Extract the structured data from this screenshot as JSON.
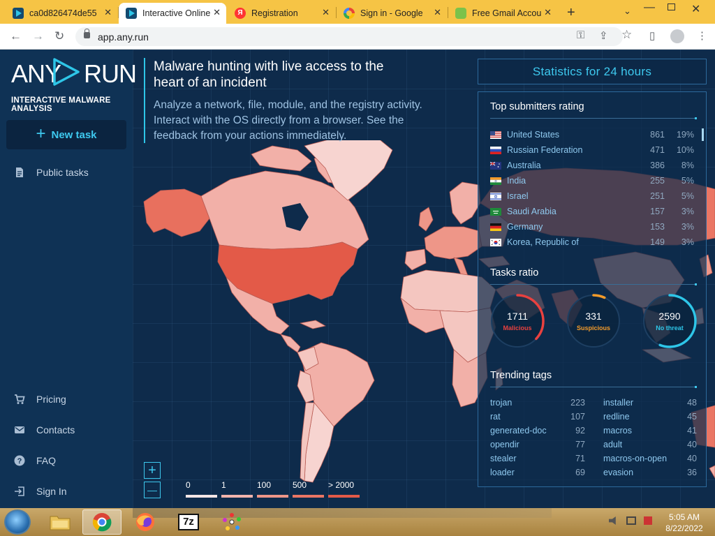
{
  "browser": {
    "tabs": [
      {
        "title": "ca0d826474de55",
        "favicon": "anyrun-icon",
        "active": false
      },
      {
        "title": "Interactive Online",
        "favicon": "anyrun-icon",
        "active": true
      },
      {
        "title": "Registration",
        "favicon": "yandex-icon",
        "active": false
      },
      {
        "title": "Sign in - Google",
        "favicon": "google-icon",
        "active": false
      },
      {
        "title": "Free Gmail Accou",
        "favicon": "gmail-icon",
        "active": false
      }
    ],
    "close_glyph": "✕",
    "new_tab_glyph": "+",
    "tab_search_glyph": "⌄",
    "minimize_glyph": "—",
    "close_window_glyph": "✕",
    "url": "app.any.run",
    "back_glyph": "←",
    "forward_glyph": "→",
    "reload_glyph": "↻",
    "key_glyph": "⚿",
    "share_glyph": "⇪",
    "star_glyph": "☆",
    "sidepanel_glyph": "▯",
    "menu_glyph": "⋮"
  },
  "sidebar": {
    "logo_left": "ANY",
    "logo_right": "RUN",
    "logo_subtitle": "INTERACTIVE MALWARE ANALYSIS",
    "new_task_plus": "+",
    "new_task_label": "New task",
    "public_tasks": "Public tasks",
    "pricing": "Pricing",
    "contacts": "Contacts",
    "faq": "FAQ",
    "sign_in": "Sign In"
  },
  "hero": {
    "title": "Malware hunting with live access to the heart of an incident",
    "description": "Analyze a network, file, module, and the registry activity. Interact with the OS directly from a browser. See the feedback from your actions immediately."
  },
  "map": {
    "zoom_in": "+",
    "zoom_out": "—",
    "legend": [
      {
        "label": "0",
        "color": "#f4e6e6"
      },
      {
        "label": "1",
        "color": "#f2b4ac"
      },
      {
        "label": "100",
        "color": "#ee9688"
      },
      {
        "label": "500",
        "color": "#ea7664"
      },
      {
        "label": "> 2000",
        "color": "#e35a48"
      }
    ]
  },
  "stats": {
    "title": "Statistics for 24 hours",
    "submitters_title": "Top submitters rating",
    "submitters": [
      {
        "country": "United States",
        "count": "861",
        "pct": "19%",
        "flag": "us-flag-icon"
      },
      {
        "country": "Russian Federation",
        "count": "471",
        "pct": "10%",
        "flag": "ru-flag-icon"
      },
      {
        "country": "Australia",
        "count": "386",
        "pct": "8%",
        "flag": "au-flag-icon"
      },
      {
        "country": "India",
        "count": "255",
        "pct": "5%",
        "flag": "in-flag-icon"
      },
      {
        "country": "Israel",
        "count": "251",
        "pct": "5%",
        "flag": "il-flag-icon"
      },
      {
        "country": "Saudi Arabia",
        "count": "157",
        "pct": "3%",
        "flag": "sa-flag-icon"
      },
      {
        "country": "Germany",
        "count": "153",
        "pct": "3%",
        "flag": "de-flag-icon"
      },
      {
        "country": "Korea, Republic of",
        "count": "149",
        "pct": "3%",
        "flag": "kr-flag-icon"
      }
    ],
    "ratio_title": "Tasks ratio",
    "ratio": [
      {
        "value": "1711",
        "label": "Malicious",
        "color": "#e9413f",
        "fraction": 0.37
      },
      {
        "value": "331",
        "label": "Suspicious",
        "color": "#f39b2a",
        "fraction": 0.07
      },
      {
        "value": "2590",
        "label": "No threat",
        "color": "#2ec6e8",
        "fraction": 0.56
      }
    ],
    "tags_title": "Trending tags",
    "tags_left": [
      {
        "name": "trojan",
        "count": "223"
      },
      {
        "name": "rat",
        "count": "107"
      },
      {
        "name": "generated-doc",
        "count": "92"
      },
      {
        "name": "opendir",
        "count": "77"
      },
      {
        "name": "stealer",
        "count": "71"
      },
      {
        "name": "loader",
        "count": "69"
      }
    ],
    "tags_right": [
      {
        "name": "installer",
        "count": "48"
      },
      {
        "name": "redline",
        "count": "45"
      },
      {
        "name": "macros",
        "count": "41"
      },
      {
        "name": "adult",
        "count": "40"
      },
      {
        "name": "macros-on-open",
        "count": "40"
      },
      {
        "name": "evasion",
        "count": "36"
      }
    ]
  },
  "taskbar": {
    "apps": [
      "explorer-icon",
      "chrome-icon",
      "firefox-icon",
      "7zip-icon",
      "dots-app-icon"
    ],
    "seven_zip_label": "7z",
    "time": "5:05 AM",
    "date": "8/22/2022"
  }
}
